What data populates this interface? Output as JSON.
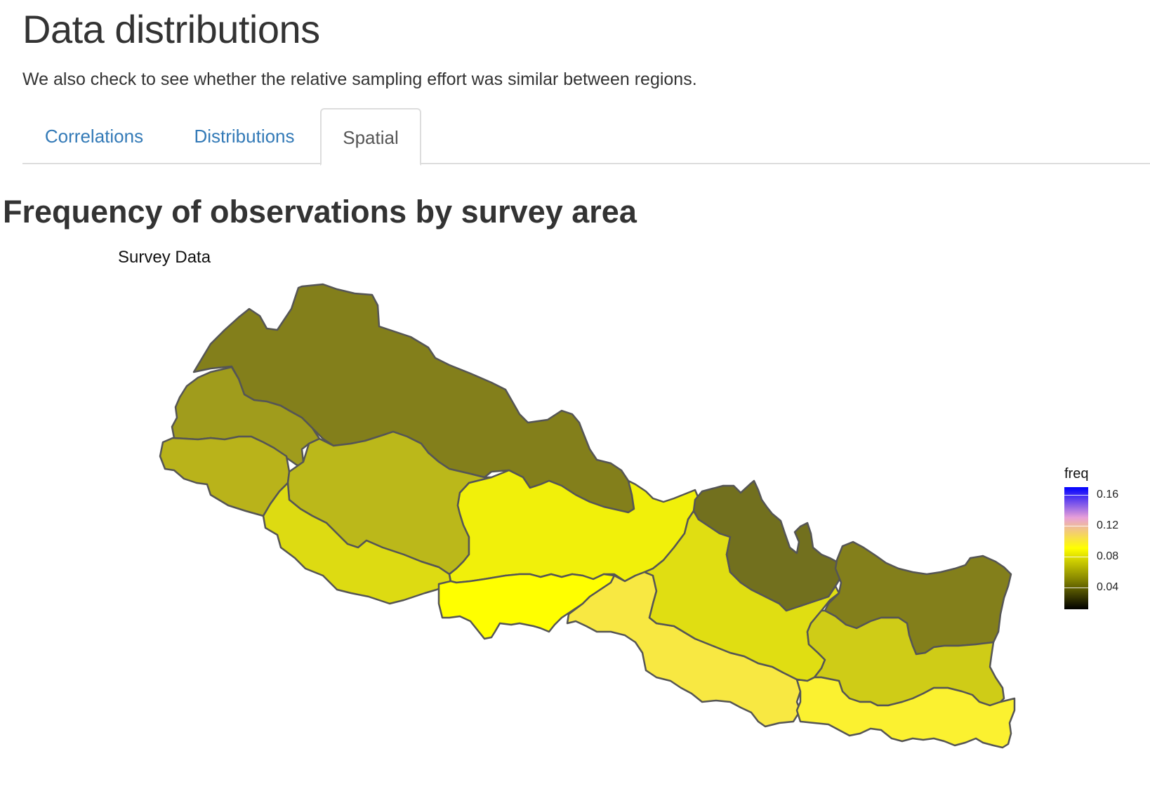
{
  "page": {
    "title": "Data distributions",
    "intro": "We also check to see whether the relative sampling effort was similar between regions."
  },
  "tabs": [
    {
      "label": "Correlations",
      "active": false
    },
    {
      "label": "Distributions",
      "active": false
    },
    {
      "label": "Spatial",
      "active": true
    }
  ],
  "section": {
    "title": "Frequency of observations by survey area"
  },
  "map": {
    "title": "Survey Data",
    "legend": {
      "title": "freq",
      "ticks": [
        "0.16",
        "0.12",
        "0.08",
        "0.04"
      ],
      "gradient_colors": [
        "#000000",
        "#888800",
        "#ffff00",
        "#e8a0d8",
        "#0000ff"
      ]
    },
    "regions": [
      {
        "id": "far-west-mountain",
        "freq": 0.055,
        "color": "#837f1b"
      },
      {
        "id": "far-west-hill",
        "freq": 0.065,
        "color": "#a09c1c"
      },
      {
        "id": "far-west-terai",
        "freq": 0.07,
        "color": "#b9b31a"
      },
      {
        "id": "mid-west-hill",
        "freq": 0.072,
        "color": "#bbb81a"
      },
      {
        "id": "mid-west-terai",
        "freq": 0.078,
        "color": "#dddb12"
      },
      {
        "id": "western-hill",
        "freq": 0.085,
        "color": "#f1f00a"
      },
      {
        "id": "western-terai",
        "freq": 0.09,
        "color": "#ffff00"
      },
      {
        "id": "central-terai",
        "freq": 0.1,
        "color": "#f8e842"
      },
      {
        "id": "central-hill",
        "freq": 0.08,
        "color": "#e0de12"
      },
      {
        "id": "central-mountain",
        "freq": 0.045,
        "color": "#72701e"
      },
      {
        "id": "eastern-mountain",
        "freq": 0.055,
        "color": "#837f1b"
      },
      {
        "id": "eastern-hill",
        "freq": 0.075,
        "color": "#cfcc17"
      },
      {
        "id": "eastern-terai",
        "freq": 0.095,
        "color": "#fbf130"
      }
    ]
  }
}
